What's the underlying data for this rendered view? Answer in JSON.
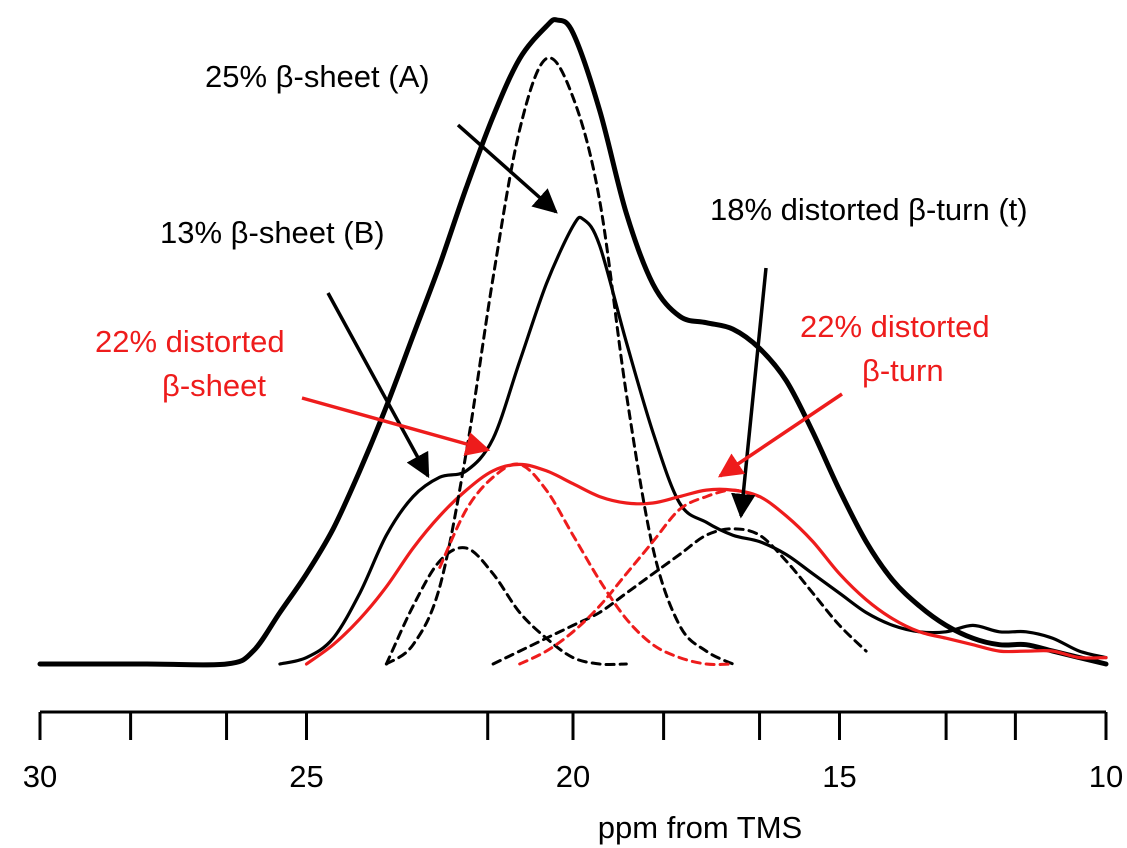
{
  "chart_data": {
    "type": "line",
    "title": "",
    "xlabel": "ppm from TMS",
    "ylabel": "",
    "x_reversed": true,
    "xlim": [
      30,
      10
    ],
    "ylim": [
      0,
      100
    ],
    "xticks": [
      {
        "value": 30,
        "label": "30"
      },
      {
        "value": 25,
        "label": "25"
      },
      {
        "value": 20,
        "label": "20"
      },
      {
        "value": 15,
        "label": "15"
      },
      {
        "value": 10,
        "label": "10"
      }
    ],
    "minor_xticks": [
      28.3,
      26.5,
      21.6,
      18.3,
      16.5,
      13.0,
      11.7
    ],
    "grid": false,
    "legend": null,
    "series": [
      {
        "color": "#000000",
        "style": "solid",
        "weight": "bold",
        "x": [
          30,
          28,
          26.5,
          26,
          25.5,
          25,
          24.5,
          24,
          23.5,
          23,
          22.5,
          22,
          21.5,
          21,
          20.5,
          20.3,
          20,
          19.5,
          19,
          18.5,
          18,
          17.5,
          17,
          16.5,
          16,
          15.5,
          15,
          14.5,
          14,
          13.5,
          13,
          12.5,
          12,
          11.5,
          11,
          10.5,
          10
        ],
        "values": [
          0,
          0,
          0,
          2,
          8,
          14,
          21,
          30,
          40,
          51,
          62,
          74,
          85,
          94,
          99,
          100,
          98,
          86,
          70,
          59,
          54,
          53,
          52,
          49,
          44,
          36,
          27,
          19,
          13,
          9,
          6,
          4,
          3,
          3,
          2,
          1,
          0
        ]
      },
      {
        "color": "#000000",
        "style": "solid",
        "weight": "normal",
        "x": [
          25.5,
          25,
          24.5,
          24,
          23.5,
          23,
          22.5,
          22,
          21.5,
          21,
          20.5,
          20,
          19.8,
          19.5,
          19,
          18.5,
          18,
          17.5,
          17,
          16.5,
          16,
          15.5,
          15,
          14.5,
          14,
          13.5,
          13,
          12.5,
          12,
          11.5,
          11,
          10.5,
          10
        ],
        "values": [
          0,
          1,
          4,
          11,
          20,
          26,
          29,
          30,
          35,
          47,
          59,
          68,
          69,
          65,
          50,
          36,
          25,
          22,
          20,
          19,
          17,
          14,
          11,
          8,
          6,
          5,
          5,
          6,
          5,
          5,
          4,
          2,
          1
        ]
      },
      {
        "color": "#ee1c1c",
        "style": "solid",
        "weight": "normal",
        "x": [
          25,
          24.5,
          24,
          23.5,
          23,
          22.5,
          22,
          21.5,
          21,
          20.5,
          20,
          19.5,
          19,
          18.5,
          18,
          17.5,
          17,
          16.5,
          16,
          15.5,
          15,
          14.5,
          14,
          13.5,
          13,
          12.5,
          12,
          11.5,
          11,
          10.5,
          10
        ],
        "values": [
          0,
          3,
          7,
          12,
          18,
          23,
          27,
          30,
          31,
          30,
          28,
          26,
          25,
          25,
          26,
          27,
          27,
          26,
          23,
          19,
          14,
          10,
          7,
          5,
          4,
          3,
          2,
          2,
          2,
          1,
          1
        ]
      },
      {
        "color": "#000000",
        "style": "dashed",
        "x": [
          23.5,
          23.0,
          22.5,
          22.0,
          21.5,
          21.0,
          20.5,
          20.0,
          19.5,
          19.0,
          18.5,
          18.0,
          17.5,
          17.0
        ],
        "values": [
          0,
          3,
          12,
          33,
          60,
          83,
          94,
          88,
          72,
          42,
          18,
          6,
          2,
          0
        ]
      },
      {
        "color": "#000000",
        "style": "dashed",
        "x": [
          23.5,
          23,
          22.5,
          22,
          21.5,
          21,
          20.5,
          20,
          19.5,
          19
        ],
        "values": [
          0,
          9,
          16,
          18,
          14,
          8,
          4,
          1,
          0,
          0
        ]
      },
      {
        "color": "#000000",
        "style": "dashed",
        "x": [
          21.5,
          21,
          20.5,
          20,
          19.5,
          19,
          18.5,
          18,
          17.5,
          17,
          16.5,
          16,
          15.5,
          15,
          14.5
        ],
        "values": [
          0,
          2,
          4,
          6,
          8,
          11,
          14,
          17,
          20,
          21,
          20,
          16,
          11,
          6,
          2
        ]
      },
      {
        "color": "#ee1c1c",
        "style": "dashed",
        "x": [
          22.5,
          22,
          21.5,
          21,
          20.5,
          20,
          19.5,
          19,
          18.5,
          18,
          17.5,
          17
        ],
        "values": [
          15,
          24,
          29,
          31,
          27,
          20,
          13,
          7,
          3,
          1,
          0,
          0
        ]
      },
      {
        "color": "#ee1c1c",
        "style": "dashed",
        "x": [
          21,
          20.5,
          20,
          19.5,
          19,
          18.5,
          18,
          17.5,
          17,
          16.5
        ],
        "values": [
          0,
          2,
          5,
          9,
          14,
          19,
          24,
          26,
          27,
          26
        ]
      }
    ],
    "annotations": [
      {
        "lines": [
          "25% β-sheet (A)"
        ],
        "color": "#000000"
      },
      {
        "lines": [
          "13% β-sheet (B)"
        ],
        "color": "#000000"
      },
      {
        "lines": [
          "18% distorted β-turn (t)"
        ],
        "color": "#000000"
      },
      {
        "lines": [
          "22% distorted",
          "β-sheet"
        ],
        "color": "#ee1c1c"
      },
      {
        "lines": [
          "22% distorted",
          "β-turn"
        ],
        "color": "#ee1c1c"
      }
    ]
  }
}
